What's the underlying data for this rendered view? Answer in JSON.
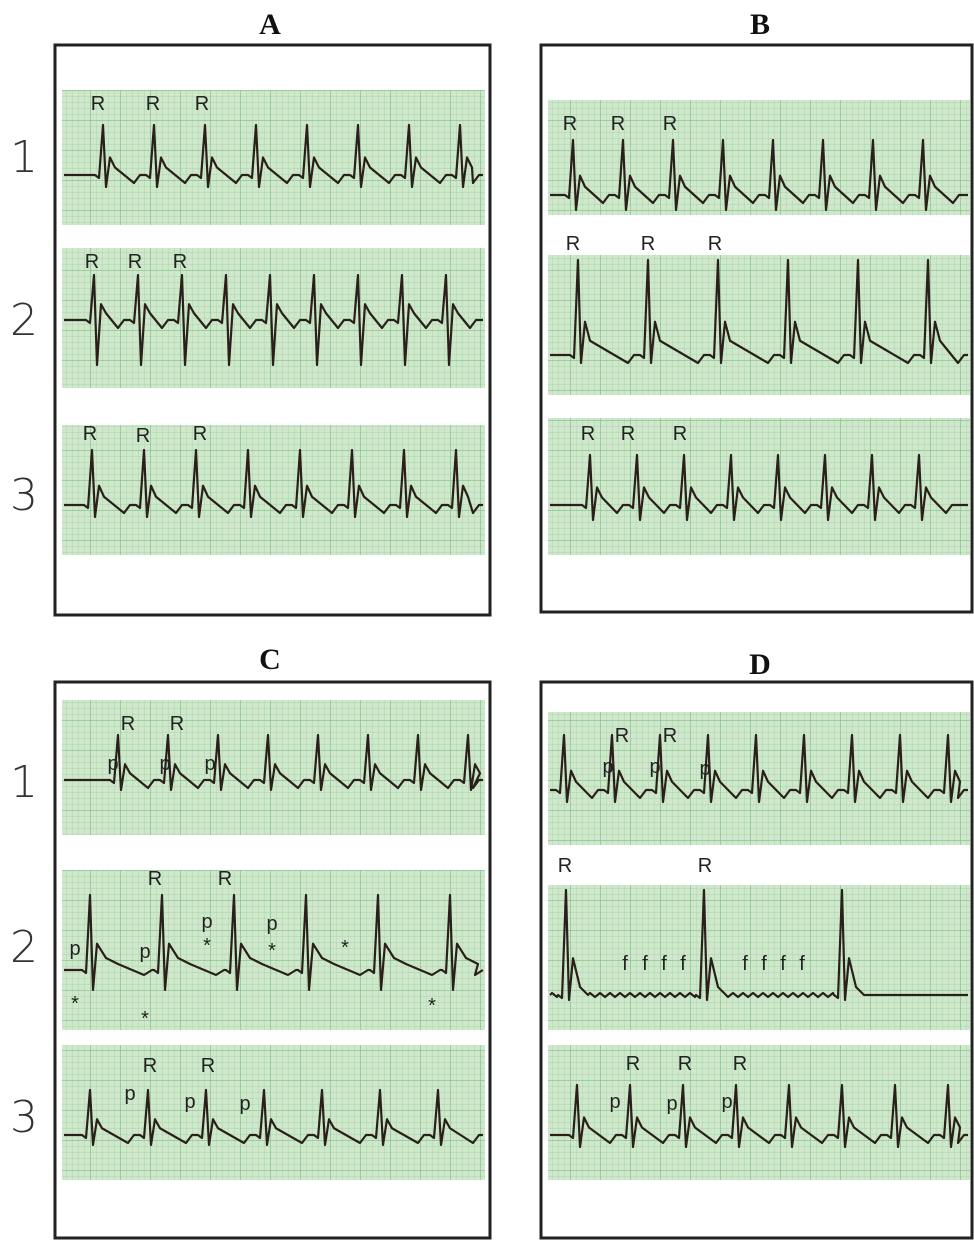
{
  "rows_top": [
    "1",
    "2",
    "3"
  ],
  "rows_bottom": [
    "1",
    "2",
    "3"
  ],
  "panels": [
    {
      "title": "A",
      "strips": [
        {
          "annotations": [
            "R",
            "R",
            "R"
          ]
        },
        {
          "annotations": [
            "R",
            "R",
            "R"
          ]
        },
        {
          "annotations": [
            "R",
            "R",
            "R"
          ]
        }
      ]
    },
    {
      "title": "B",
      "strips": [
        {
          "annotations": [
            "R",
            "R",
            "R"
          ]
        },
        {
          "annotations": [
            "R",
            "R",
            "R"
          ]
        },
        {
          "annotations": [
            "R",
            "R",
            "R"
          ]
        }
      ]
    },
    {
      "title": "C",
      "strips": [
        {
          "annotations": [
            "R",
            "R",
            "p",
            "p",
            "p"
          ]
        },
        {
          "annotations": [
            "p",
            "*",
            "p",
            "*",
            "R",
            "p",
            "*",
            "R",
            "p",
            "*",
            "*",
            "*"
          ]
        },
        {
          "annotations": [
            "R",
            "R",
            "p",
            "p",
            "p"
          ]
        }
      ]
    },
    {
      "title": "D",
      "strips": [
        {
          "annotations": [
            "R",
            "R",
            "p",
            "p",
            "p"
          ]
        },
        {
          "annotations": [
            "R",
            "R",
            "f",
            "f",
            "f",
            "f",
            "f",
            "f",
            "f",
            "f"
          ]
        },
        {
          "annotations": [
            "R",
            "R",
            "R",
            "p",
            "p",
            "p"
          ]
        }
      ]
    }
  ]
}
